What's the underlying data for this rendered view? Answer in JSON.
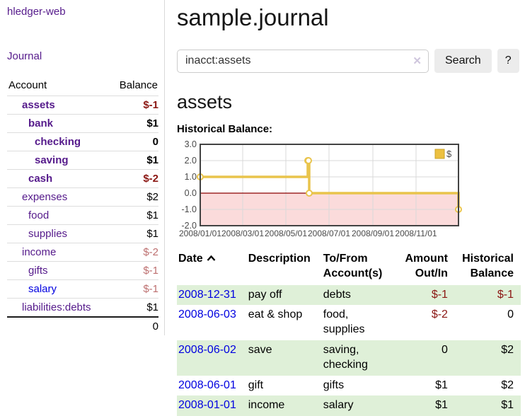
{
  "sidebar": {
    "app_title": "hledger-web",
    "journal_label": "Journal",
    "accounts_table": {
      "headers": {
        "account": "Account",
        "balance": "Balance"
      },
      "rows": [
        {
          "account": "assets",
          "indent": 1,
          "bold": true,
          "link_color": "purple",
          "balance": "$-1",
          "balance_style": "neg"
        },
        {
          "account": "bank",
          "indent": 2,
          "bold": true,
          "link_color": "purple",
          "balance": "$1",
          "balance_style": "pos"
        },
        {
          "account": "checking",
          "indent": 3,
          "bold": true,
          "link_color": "purple",
          "balance": "0",
          "balance_style": "pos"
        },
        {
          "account": "saving",
          "indent": 3,
          "bold": true,
          "link_color": "purple",
          "balance": "$1",
          "balance_style": "pos"
        },
        {
          "account": "cash",
          "indent": 2,
          "bold": true,
          "link_color": "purple",
          "balance": "$-2",
          "balance_style": "neg"
        },
        {
          "account": "expenses",
          "indent": 1,
          "bold": false,
          "link_color": "purple",
          "balance": "$2",
          "balance_style": "pos"
        },
        {
          "account": "food",
          "indent": 2,
          "bold": false,
          "link_color": "purple",
          "balance": "$1",
          "balance_style": "pos"
        },
        {
          "account": "supplies",
          "indent": 2,
          "bold": false,
          "link_color": "purple",
          "balance": "$1",
          "balance_style": "pos"
        },
        {
          "account": "income",
          "indent": 1,
          "bold": false,
          "link_color": "purple",
          "balance": "$-2",
          "balance_style": "neg-light"
        },
        {
          "account": "gifts",
          "indent": 2,
          "bold": false,
          "link_color": "purple",
          "balance": "$-1",
          "balance_style": "neg-light"
        },
        {
          "account": "salary",
          "indent": 2,
          "bold": false,
          "link_color": "blue",
          "balance": "$-1",
          "balance_style": "neg-light"
        },
        {
          "account": "liabilities:debts",
          "indent": 1,
          "bold": false,
          "link_color": "purple",
          "balance": "$1",
          "balance_style": "pos"
        }
      ],
      "total": "0"
    }
  },
  "main": {
    "page_title": "sample.journal",
    "search": {
      "query": "inacct:assets",
      "clear_glyph": "✕",
      "search_label": "Search",
      "help_label": "?"
    },
    "account_heading": "assets",
    "chart_label": "Historical Balance:"
  },
  "chart_data": {
    "type": "line",
    "step": true,
    "title": "Historical Balance:",
    "series": [
      {
        "name": "$",
        "points": [
          [
            "2008-01-01",
            1
          ],
          [
            "2008-06-01",
            2
          ],
          [
            "2008-06-02",
            2
          ],
          [
            "2008-06-03",
            0
          ],
          [
            "2008-12-31",
            -1
          ]
        ]
      }
    ],
    "xlim": [
      "2008-01-01",
      "2008-12-31"
    ],
    "ylim": [
      -2.0,
      3.0
    ],
    "y_ticks": [
      "3.0",
      "2.0",
      "1.0",
      "0.0",
      "-1.0",
      "-2.0"
    ],
    "y_tick_values": [
      3,
      2,
      1,
      0,
      -1,
      -2
    ],
    "x_ticks": [
      "2008/01/01",
      "2008/03/01",
      "2008/05/01",
      "2008/07/01",
      "2008/09/01",
      "2008/11/01"
    ],
    "legend": {
      "label": "$",
      "position": "top-right"
    },
    "grid": true,
    "colors": {
      "line": "#e9c44c",
      "marker_fill": "#ffffff",
      "legend_fill": "#ecc040",
      "legend_border": "#c9a227",
      "negative_region": "#fbdbdb",
      "zero_line": "#8b0000",
      "gridline": "#d9d9d9",
      "border": "#434343"
    }
  },
  "register_table": {
    "headers": {
      "date": "Date",
      "description": "Description",
      "accounts": "To/From Account(s)",
      "amount": "Amount Out/In",
      "balance": "Historical Balance"
    },
    "sort_icon": "chevron-up",
    "rows": [
      {
        "date": "2008-12-31",
        "description": "pay off",
        "accounts": "debts",
        "amount": "$-1",
        "amount_style": "neg",
        "balance": "$-1",
        "balance_style": "neg"
      },
      {
        "date": "2008-06-03",
        "description": "eat & shop",
        "accounts": "food, supplies",
        "amount": "$-2",
        "amount_style": "neg",
        "balance": "0",
        "balance_style": "pos"
      },
      {
        "date": "2008-06-02",
        "description": "save",
        "accounts": "saving, checking",
        "amount": "0",
        "amount_style": "pos",
        "balance": "$2",
        "balance_style": "pos"
      },
      {
        "date": "2008-06-01",
        "description": "gift",
        "accounts": "gifts",
        "amount": "$1",
        "amount_style": "pos",
        "balance": "$2",
        "balance_style": "pos"
      },
      {
        "date": "2008-01-01",
        "description": "income",
        "accounts": "salary",
        "amount": "$1",
        "amount_style": "pos",
        "balance": "$1",
        "balance_style": "pos"
      }
    ]
  },
  "colors": {
    "link_purple": "#551a8b",
    "link_blue": "#0000e0",
    "negative_red": "#8b1713",
    "negative_light_red": "#bd6f6f",
    "row_stripe_green": "#dff0d8",
    "button_gray": "#ececec",
    "chart_gold": "#e9c44c",
    "chart_pink": "#fbdbdb"
  }
}
